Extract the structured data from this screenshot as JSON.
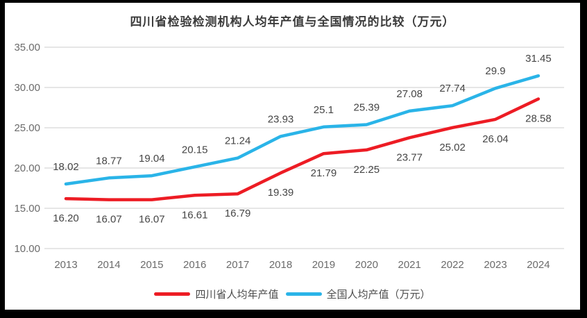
{
  "frame": {
    "border_color": "#000000",
    "background": "#ffffff"
  },
  "chart_data": {
    "type": "line",
    "title": "四川省检验检测机构人均年产值与全国情况的比较（万元）",
    "categories": [
      "2013",
      "2014",
      "2015",
      "2016",
      "2017",
      "2018",
      "2019",
      "2020",
      "2021",
      "2022",
      "2023",
      "2024"
    ],
    "series": [
      {
        "name": "四川省人均年产值",
        "color": "#ed1c24",
        "values": [
          16.2,
          16.07,
          16.07,
          16.61,
          16.79,
          19.39,
          21.79,
          22.25,
          23.77,
          25.02,
          26.04,
          28.58
        ],
        "point_labels": [
          "16.20",
          "16.07",
          "16.07",
          "16.61",
          "16.79",
          "19.39",
          "21.79",
          "22.25",
          "23.77",
          "25.02",
          "26.04",
          "28.58"
        ],
        "label_position": "below"
      },
      {
        "name": "全国人均产值（万元）",
        "color": "#2ab4e8",
        "values": [
          18.02,
          18.77,
          19.04,
          20.15,
          21.24,
          23.93,
          25.1,
          25.39,
          27.08,
          27.74,
          29.9,
          31.45
        ],
        "point_labels": [
          "18.02",
          "18.77",
          "19.04",
          "20.15",
          "21.24",
          "23.93",
          "25.1",
          "25.39",
          "27.08",
          "27.74",
          "29.9",
          "31.45"
        ],
        "label_position": "above"
      }
    ],
    "xlabel": "",
    "ylabel": "",
    "ylim": [
      10,
      35
    ],
    "yticks": [
      {
        "value": 35,
        "label": "35.00"
      },
      {
        "value": 30,
        "label": "30.00"
      },
      {
        "value": 25,
        "label": "25.00"
      },
      {
        "value": 20,
        "label": "20.00"
      },
      {
        "value": 15,
        "label": "15.00"
      },
      {
        "value": 10,
        "label": "10.00"
      }
    ],
    "grid": "horizontal",
    "gridline_color": "#dedede",
    "legend_position": "bottom"
  }
}
